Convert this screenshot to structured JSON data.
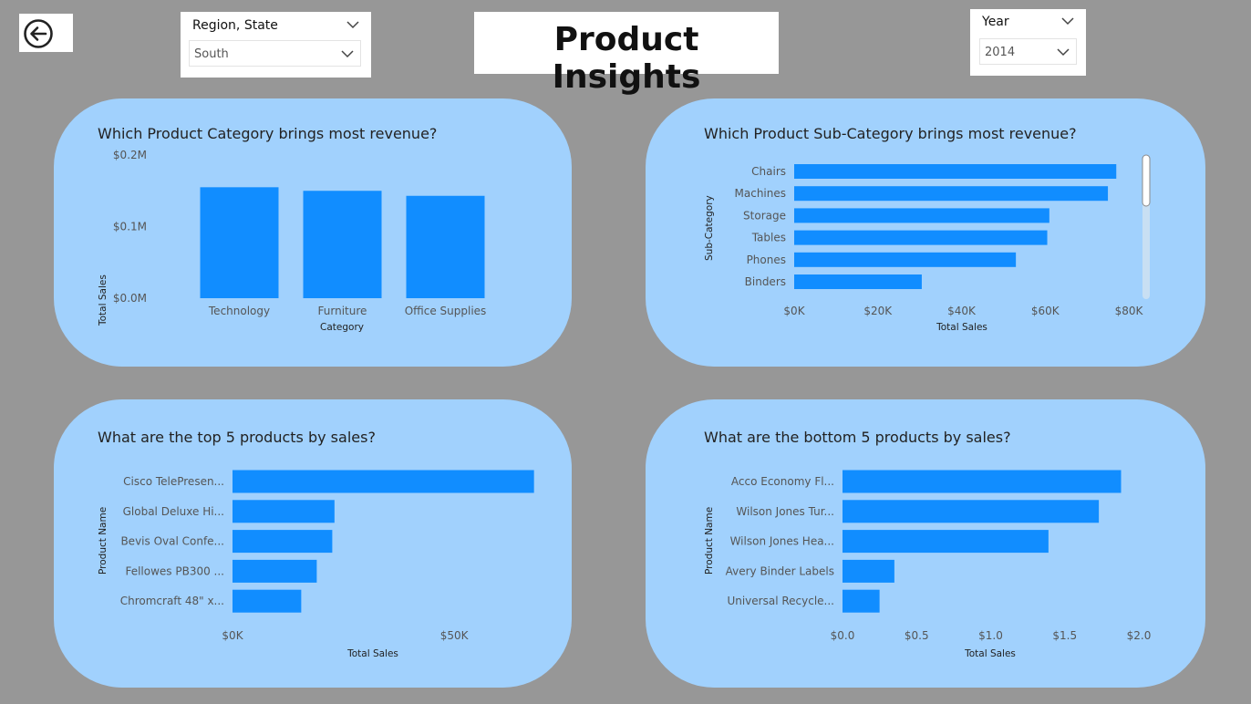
{
  "header": {
    "title": "Product Insights",
    "back_icon": "back-arrow-icon"
  },
  "filters": {
    "region": {
      "title": "Region, State",
      "value": "South"
    },
    "year": {
      "title": "Year",
      "value": "2014"
    }
  },
  "colors": {
    "bar": "#118dff",
    "panel": "#a1d1fd",
    "background": "#979797"
  },
  "chart_data": [
    {
      "type": "bar",
      "title": "Which Product Category brings most revenue?",
      "categories": [
        "Technology",
        "Furniture",
        "Office Supplies"
      ],
      "values": [
        0.155,
        0.15,
        0.143
      ],
      "xlabel": "Category",
      "ylabel": "Total Sales",
      "ylim": [
        0,
        0.2
      ],
      "yticks": [
        0,
        0.1,
        0.2
      ],
      "ytick_labels": [
        "$0.0M",
        "$0.1M",
        "$0.2M"
      ],
      "grid": false
    },
    {
      "type": "bar",
      "orientation": "horizontal",
      "title": "Which Product Sub-Category brings most revenue?",
      "categories": [
        "Chairs",
        "Machines",
        "Storage",
        "Tables",
        "Phones",
        "Binders"
      ],
      "values": [
        77000,
        75000,
        61000,
        60500,
        53000,
        30500
      ],
      "xlabel": "Total Sales",
      "ylabel": "Sub-Category",
      "xlim": [
        0,
        80000
      ],
      "xticks": [
        0,
        20000,
        40000,
        60000,
        80000
      ],
      "xtick_labels": [
        "$0K",
        "$20K",
        "$40K",
        "$60K",
        "$80K"
      ],
      "scrollable": true
    },
    {
      "type": "bar",
      "orientation": "horizontal",
      "title": "What are the top 5 products by sales?",
      "categories": [
        "Cisco TelePresen...",
        "Global Deluxe Hi...",
        "Bevis Oval Confe...",
        "Fellowes PB300 ...",
        "Chromcraft 48\" x..."
      ],
      "values": [
        68000,
        23000,
        22500,
        19000,
        15500
      ],
      "xlabel": "Total Sales",
      "ylabel": "Product Name",
      "xlim": [
        0,
        80000
      ],
      "xticks": [
        0,
        50000
      ],
      "xtick_labels": [
        "$0K",
        "$50K"
      ]
    },
    {
      "type": "bar",
      "orientation": "horizontal",
      "title": "What are the bottom 5 products by sales?",
      "categories": [
        "Acco Economy Fl...",
        "Wilson Jones Tur...",
        "Wilson Jones Hea...",
        "Avery Binder Labels",
        "Universal Recycle..."
      ],
      "values": [
        1.88,
        1.73,
        1.39,
        0.35,
        0.25
      ],
      "xlabel": "Total Sales",
      "ylabel": "Product Name",
      "xlim": [
        0,
        2.0
      ],
      "xticks": [
        0,
        0.5,
        1.0,
        1.5,
        2.0
      ],
      "xtick_labels": [
        "$0.0",
        "$0.5",
        "$1.0",
        "$1.5",
        "$2.0"
      ]
    }
  ]
}
